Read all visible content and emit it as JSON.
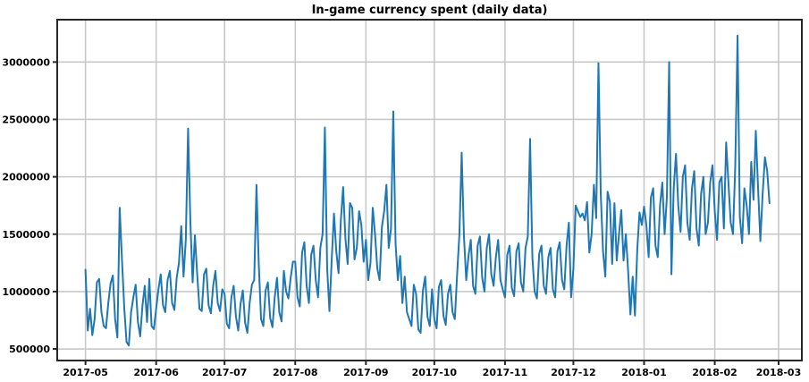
{
  "figure": {
    "background": "#ffffff"
  },
  "chart_data": {
    "type": "line",
    "title": "In-game currency spent (daily data)",
    "xlabel": "",
    "ylabel": "",
    "legend": "none",
    "grid": true,
    "line_color": "#1f77b4",
    "grid_color": "#c8c8c8",
    "spine_color": "#262626",
    "x_start_date": "2017-05-01",
    "x_unit": "day",
    "x_tick_days": [
      0,
      31,
      61,
      92,
      123,
      153,
      184,
      214,
      245,
      276,
      304
    ],
    "x_tick_labels": [
      "2017-05",
      "2017-06",
      "2017-07",
      "2017-08",
      "2017-09",
      "2017-10",
      "2017-11",
      "2017-12",
      "2018-01",
      "2018-02",
      "2018-03"
    ],
    "y_ticks": [
      500000,
      1000000,
      1500000,
      2000000,
      2500000,
      3000000
    ],
    "y_tick_labels": [
      "500000",
      "1000000",
      "1500000",
      "2000000",
      "2500000",
      "3000000"
    ],
    "xlim_days": [
      -12.4,
      314.2
    ],
    "ylim": [
      399000,
      3369000
    ],
    "values": [
      1190000,
      660000,
      850000,
      620000,
      760000,
      1080000,
      1110000,
      820000,
      700000,
      680000,
      900000,
      1070000,
      1140000,
      760000,
      600000,
      1730000,
      1280000,
      860000,
      560000,
      530000,
      820000,
      950000,
      1060000,
      735000,
      610000,
      880000,
      1050000,
      735000,
      1110000,
      700000,
      672000,
      850000,
      1020000,
      1150000,
      880000,
      820000,
      1100000,
      1180000,
      900000,
      840000,
      1120000,
      1250000,
      1570000,
      1130000,
      1450000,
      2420000,
      1610000,
      1080000,
      1490000,
      1150000,
      850000,
      830000,
      1150000,
      1200000,
      880000,
      810000,
      1050000,
      1180000,
      900000,
      830000,
      1020000,
      980000,
      720000,
      680000,
      950000,
      1050000,
      780000,
      660000,
      890000,
      1010000,
      730000,
      640000,
      900000,
      1060000,
      1100000,
      1930000,
      1240000,
      760000,
      700000,
      1010000,
      1080000,
      770000,
      690000,
      950000,
      1120000,
      820000,
      740000,
      1180000,
      1000000,
      940000,
      1120000,
      1260000,
      1260000,
      950000,
      870000,
      1340000,
      1430000,
      1050000,
      900000,
      1320000,
      1400000,
      1100000,
      950000,
      1380000,
      1500000,
      2430000,
      1200000,
      830000,
      1280000,
      1680000,
      1350000,
      1160000,
      1620000,
      1910000,
      1460000,
      1240000,
      1770000,
      1730000,
      1280000,
      1380000,
      1700000,
      1580000,
      1260000,
      1450000,
      1100000,
      1250000,
      1730000,
      1500000,
      1200000,
      1100000,
      1560000,
      1700000,
      1930000,
      1380000,
      1550000,
      2570000,
      1420000,
      1100000,
      1310000,
      900000,
      1130000,
      820000,
      760000,
      700000,
      1060000,
      980000,
      670000,
      640000,
      1010000,
      1130000,
      780000,
      700000,
      1020000,
      760000,
      680000,
      1040000,
      1100000,
      790000,
      710000,
      980000,
      1060000,
      820000,
      760000,
      1150000,
      1500000,
      2210000,
      1480000,
      1100000,
      1310000,
      1450000,
      1050000,
      980000,
      1400000,
      1480000,
      1120000,
      1000000,
      1380000,
      1500000,
      1150000,
      1050000,
      1300000,
      1450000,
      1100000,
      1020000,
      950000,
      1320000,
      1400000,
      1030000,
      960000,
      1350000,
      1420000,
      1080000,
      1000000,
      1380000,
      1480000,
      2330000,
      1300000,
      1000000,
      940000,
      1330000,
      1400000,
      1050000,
      980000,
      1300000,
      1380000,
      1020000,
      950000,
      1350000,
      1430000,
      1100000,
      1020000,
      1400000,
      1600000,
      950000,
      1200000,
      1750000,
      1700000,
      1650000,
      1680000,
      1620000,
      1780000,
      1340000,
      1500000,
      1930000,
      1640000,
      2990000,
      1850000,
      1350000,
      1130000,
      1870000,
      1780000,
      1240000,
      1770000,
      1270000,
      1500000,
      1710000,
      1270000,
      1500000,
      1180000,
      800000,
      1130000,
      790000,
      1360000,
      1690000,
      1580000,
      1740000,
      1580000,
      1300000,
      1820000,
      1900000,
      1400000,
      1300000,
      1750000,
      1950000,
      1500000,
      1820000,
      3000000,
      1150000,
      1900000,
      2200000,
      1750000,
      1520000,
      2000000,
      2100000,
      1600000,
      1450000,
      1900000,
      2050000,
      1550000,
      1400000,
      1850000,
      2000000,
      1500000,
      1600000,
      1950000,
      2100000,
      1700000,
      1450000,
      1950000,
      2000000,
      1550000,
      2300000,
      1950000,
      1600000,
      1500000,
      2100000,
      3230000,
      1650000,
      1420000,
      1900000,
      1750000,
      1500000,
      2130000,
      1800000,
      2400000,
      1900000,
      1440000,
      1850000,
      2170000,
      2050000,
      1770000
    ]
  }
}
